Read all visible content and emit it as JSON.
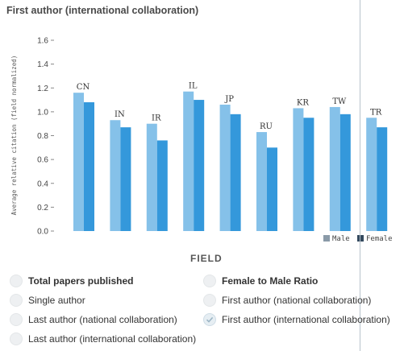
{
  "title": "First author (international collaboration)",
  "chart_data": {
    "type": "bar",
    "ylabel": "Average relative citation (field normalized)",
    "xlabel": "FIELD",
    "ylim": [
      0,
      1.6
    ],
    "yticks": [
      "0.0",
      "0.2",
      "0.4",
      "0.6",
      "0.8",
      "1.0",
      "1.2",
      "1.4",
      "1.6"
    ],
    "categories": [
      "CN",
      "IN",
      "IR",
      "IL",
      "JP",
      "RU",
      "KR",
      "TW",
      "TR"
    ],
    "series": [
      {
        "name": "Male",
        "values": [
          1.16,
          0.93,
          0.9,
          1.17,
          1.06,
          0.83,
          1.03,
          1.04,
          0.95
        ],
        "color": "#85c1e9"
      },
      {
        "name": "Female",
        "values": [
          1.08,
          0.87,
          0.76,
          1.1,
          0.98,
          0.7,
          0.95,
          0.98,
          0.87
        ],
        "color": "#3498db"
      }
    ],
    "legend": [
      {
        "label": "Male",
        "swatch": "#8a9aa8"
      },
      {
        "label": "Female",
        "swatch": "#34495e"
      }
    ],
    "legend_position": "bottom-right",
    "grid": false
  },
  "options": [
    {
      "label": "Total papers published",
      "bold": true,
      "checked": false
    },
    {
      "label": "Female to Male Ratio",
      "bold": true,
      "checked": false
    },
    {
      "label": "Single author",
      "bold": false,
      "checked": false
    },
    {
      "label": "First author (national collaboration)",
      "bold": false,
      "checked": false
    },
    {
      "label": "Last author (national collaboration)",
      "bold": false,
      "checked": false
    },
    {
      "label": "First author (international collaboration)",
      "bold": false,
      "checked": true
    },
    {
      "label": "Last author (international collaboration)",
      "bold": false,
      "checked": false
    }
  ]
}
